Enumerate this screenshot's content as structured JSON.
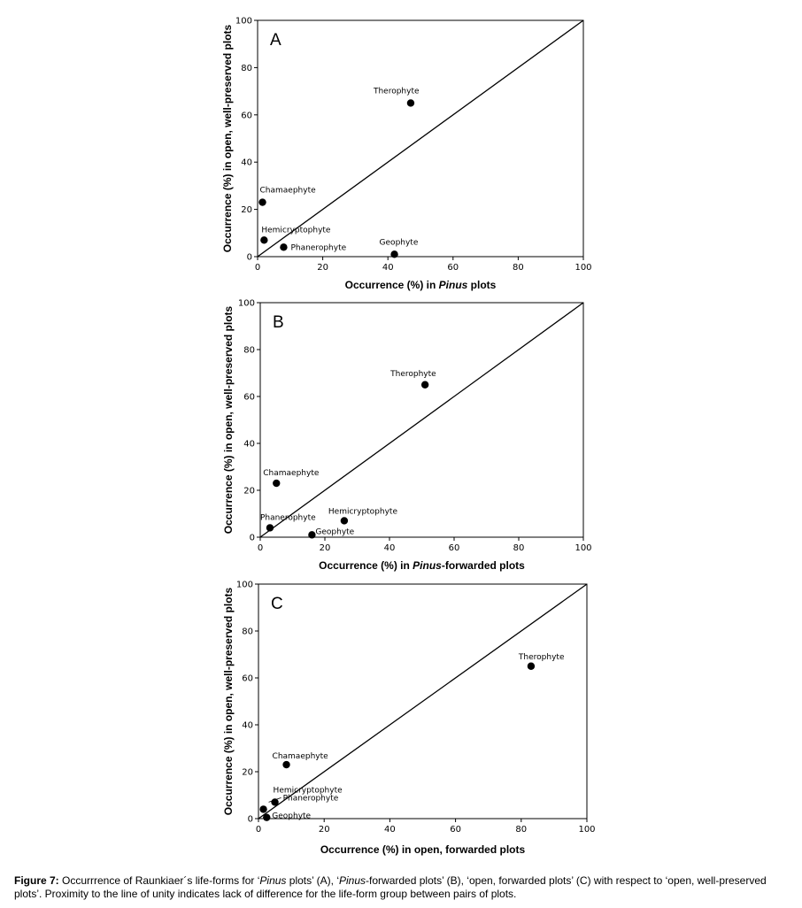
{
  "chart_data": [
    {
      "type": "scatter",
      "panel": "A",
      "xlabel_prefix": "Occurrence (%) in ",
      "xlabel_italic": "Pinus",
      "xlabel_suffix": " plots",
      "ylabel": "Occurrence (%) in open, well-preserved plots",
      "xlim": [
        0,
        100
      ],
      "ylim": [
        0,
        100
      ],
      "xticks": [
        0,
        20,
        40,
        60,
        80,
        100
      ],
      "yticks": [
        0,
        20,
        40,
        60,
        80,
        100
      ],
      "unity_line": true,
      "grid": false,
      "points": [
        {
          "label": "Therophyte",
          "x": 47,
          "y": 65
        },
        {
          "label": "Chamaephyte",
          "x": 1.5,
          "y": 23
        },
        {
          "label": "Hemicryptophyte",
          "x": 2,
          "y": 7
        },
        {
          "label": "Phanerophyte",
          "x": 8,
          "y": 4
        },
        {
          "label": "Geophyte",
          "x": 42,
          "y": 1
        }
      ]
    },
    {
      "type": "scatter",
      "panel": "B",
      "xlabel_prefix": "Occurrence (%) in ",
      "xlabel_italic": "Pinus",
      "xlabel_suffix": "-forwarded plots",
      "ylabel": "Occurrence (%) in open, well-preserved plots",
      "xlim": [
        0,
        100
      ],
      "ylim": [
        0,
        100
      ],
      "xticks": [
        0,
        20,
        40,
        60,
        80,
        100
      ],
      "yticks": [
        0,
        20,
        40,
        60,
        80,
        100
      ],
      "unity_line": true,
      "grid": false,
      "points": [
        {
          "label": "Therophyte",
          "x": 51,
          "y": 65
        },
        {
          "label": "Chamaephyte",
          "x": 5,
          "y": 23
        },
        {
          "label": "Hemicryptophyte",
          "x": 26,
          "y": 7
        },
        {
          "label": "Phanerophyte",
          "x": 3,
          "y": 4
        },
        {
          "label": "Geophyte",
          "x": 16,
          "y": 1
        }
      ]
    },
    {
      "type": "scatter",
      "panel": "C",
      "xlabel_prefix": "Occurrence (%) in open, forwarded plots",
      "xlabel_italic": "",
      "xlabel_suffix": "",
      "ylabel": "Occurrence (%) in open, well-preserved plots",
      "xlim": [
        0,
        100
      ],
      "ylim": [
        0,
        100
      ],
      "xticks": [
        0,
        20,
        40,
        60,
        80,
        100
      ],
      "yticks": [
        0,
        20,
        40,
        60,
        80,
        100
      ],
      "unity_line": true,
      "grid": false,
      "points": [
        {
          "label": "Therophyte",
          "x": 83,
          "y": 65
        },
        {
          "label": "Chamaephyte",
          "x": 8.5,
          "y": 23
        },
        {
          "label": "Hemicryptophyte",
          "x": 5,
          "y": 7
        },
        {
          "label": "Phanerophyte",
          "x": 1.5,
          "y": 4
        },
        {
          "label": "Geophyte",
          "x": 2.5,
          "y": 0.5
        }
      ]
    }
  ],
  "caption": {
    "lead": "Figure 7:",
    "parts": [
      " Occurrrence of Raunkiaer´s life-forms for ‘",
      "Pinus",
      " plots’ (A), ‘",
      "Pinus",
      "-forwarded plots’ (B), ‘open, forwarded plots’ (C) with respect to ‘open, well-preserved plots’. Proximity to the line of unity indicates lack of difference for the life-form group between pairs of plots."
    ]
  }
}
